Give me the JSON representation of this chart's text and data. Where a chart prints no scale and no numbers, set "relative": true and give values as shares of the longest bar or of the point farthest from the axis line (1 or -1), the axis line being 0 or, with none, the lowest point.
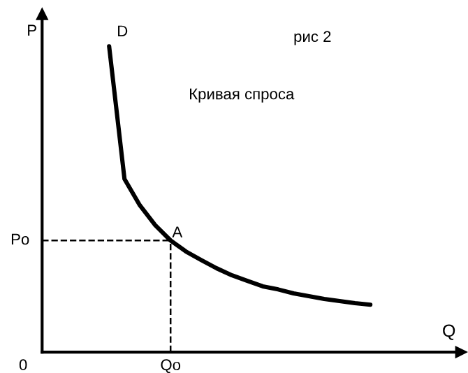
{
  "chart_data": {
    "type": "line",
    "relative": true,
    "xlabel": "Q",
    "ylabel": "P",
    "line_style": "solid",
    "marker": "none",
    "categories": [
      null,
      null,
      null,
      null,
      null,
      null,
      null,
      null,
      null,
      null,
      null,
      null,
      null,
      null,
      null,
      null,
      null,
      null
    ],
    "series": [
      {
        "color": "#000000",
        "values": [
          1.0,
          0.566,
          0.48,
          0.415,
          0.365,
          0.329,
          0.301,
          0.274,
          0.251,
          0.233,
          0.215,
          0.205,
          0.192,
          0.183,
          0.174,
          0.167,
          0.16,
          0.155
        ]
      }
    ],
    "ref_lines": [
      {
        "axis": "y",
        "value": 0.365,
        "label": "Po",
        "line_style": "dashed",
        "color": "#000000"
      }
    ],
    "annotations": [
      "рис 2",
      "Кривая спроса",
      "D",
      "Qo",
      "0",
      {
        "text": "A",
        "y": 0.365
      }
    ]
  }
}
